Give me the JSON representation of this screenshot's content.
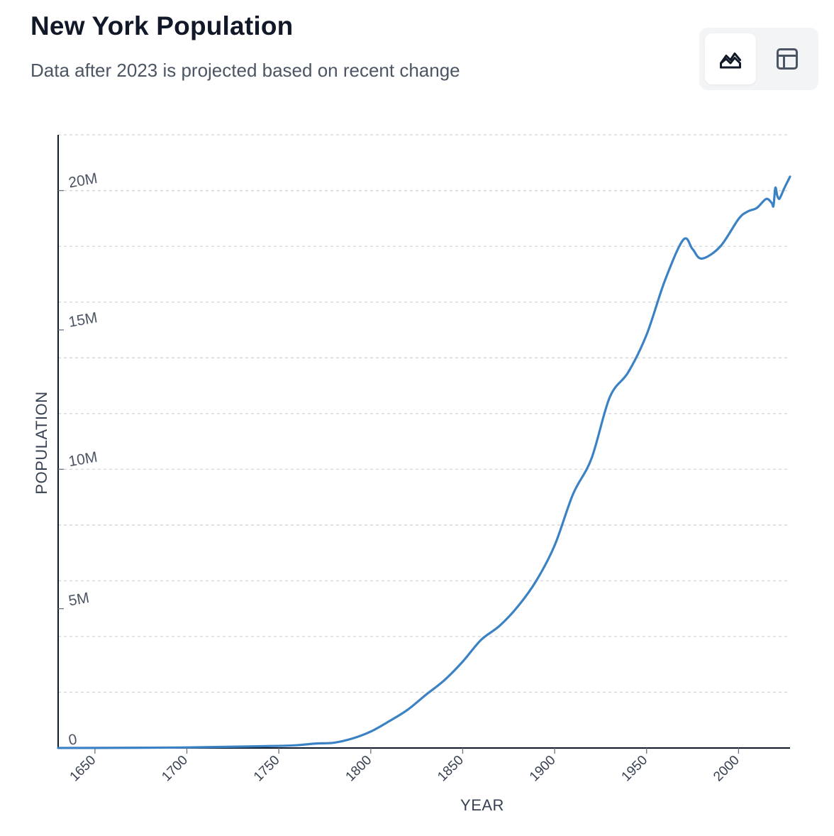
{
  "header": {
    "title": "New York Population",
    "subtitle": "Data after 2023 is projected based on recent change"
  },
  "view_toggle": {
    "active": "chart",
    "buttons": [
      {
        "name": "chart-view",
        "icon": "area-chart-icon"
      },
      {
        "name": "table-view",
        "icon": "table-icon"
      }
    ]
  },
  "colors": {
    "line": "#3b82c4",
    "grid": "#d1d5db",
    "axis": "#111827"
  },
  "chart_data": {
    "type": "line",
    "title": "New York Population",
    "subtitle": "Data after 2023 is projected based on recent change",
    "xlabel": "YEAR",
    "ylabel": "POPULATION",
    "xlim": [
      1630,
      2028
    ],
    "ylim": [
      0,
      22000000
    ],
    "x_ticks": [
      1650,
      1700,
      1750,
      1800,
      1850,
      1900,
      1950,
      2000
    ],
    "x_tick_labels": [
      "1650",
      "1700",
      "1750",
      "1800",
      "1850",
      "1900",
      "1950",
      "2000"
    ],
    "y_ticks": [
      0,
      5000000,
      10000000,
      15000000,
      20000000
    ],
    "y_tick_labels": [
      "0",
      "5M",
      "10M",
      "15M",
      "20M"
    ],
    "y_grid": [
      2000000,
      4000000,
      6000000,
      8000000,
      10000000,
      12000000,
      14000000,
      16000000,
      18000000,
      20000000,
      22000000
    ],
    "grid": true,
    "legend": "none",
    "series": [
      {
        "x": [
          1630,
          1650,
          1700,
          1730,
          1750,
          1760,
          1770,
          1780,
          1790,
          1800,
          1810,
          1820,
          1830,
          1840,
          1850,
          1860,
          1870,
          1880,
          1890,
          1900,
          1910,
          1920,
          1930,
          1940,
          1950,
          1960,
          1970,
          1975,
          1980,
          1990,
          2000,
          2005,
          2010,
          2015,
          2018,
          2019,
          2020,
          2021,
          2022,
          2023,
          2025,
          2028
        ],
        "y": [
          2000,
          4000,
          19000,
          50000,
          75000,
          100000,
          160000,
          190000,
          340000,
          590000,
          960000,
          1370000,
          1910000,
          2430000,
          3100000,
          3880000,
          4380000,
          5080000,
          6000000,
          7270000,
          9110000,
          10380000,
          12590000,
          13480000,
          14830000,
          16780000,
          18240000,
          17900000,
          17560000,
          17990000,
          18980000,
          19250000,
          19380000,
          19700000,
          19560000,
          19450000,
          20100000,
          19830000,
          19700000,
          19800000,
          20100000,
          20500000
        ]
      }
    ]
  }
}
